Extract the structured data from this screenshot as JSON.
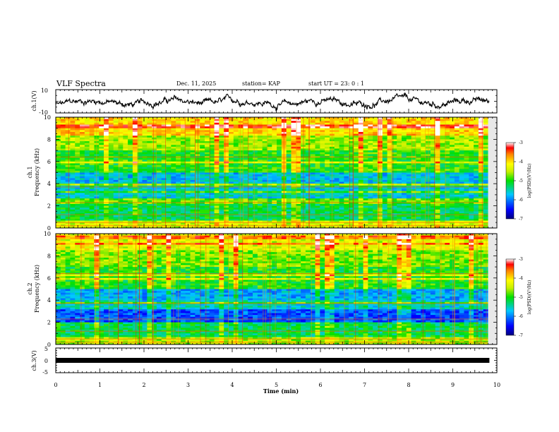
{
  "header": {
    "title": "VLF Spectra",
    "date": "Dec. 11, 2025",
    "station": "station= KAP",
    "start": "start  UT  =   23: 0   : 1"
  },
  "chart_data": [
    {
      "type": "line",
      "ylabel": "ch.1(V)",
      "ylim": [
        -10,
        10
      ],
      "yticks": [
        -10,
        10
      ],
      "xlim": [
        0,
        10
      ],
      "series": [
        {
          "name": "ch.1 waveform",
          "mean": -1,
          "amplitude": 5
        }
      ]
    },
    {
      "type": "heatmap",
      "ylabel_channel": "ch.1",
      "ylabel": "Frequency  (kHz)",
      "ylim": [
        0,
        10
      ],
      "yticks": [
        "0",
        "2",
        "4",
        "6",
        "8",
        "10"
      ],
      "xlim": [
        0,
        9.8
      ],
      "bands_khz": [
        {
          "from": 0,
          "to": 0.6,
          "level": -4.4
        },
        {
          "from": 0.6,
          "to": 2.2,
          "level": -5.2
        },
        {
          "from": 2.2,
          "to": 2.6,
          "level": -4.8
        },
        {
          "from": 2.6,
          "to": 3.6,
          "level": -5.6
        },
        {
          "from": 3.6,
          "to": 4.0,
          "level": -5.3
        },
        {
          "from": 4.0,
          "to": 5.0,
          "level": -5.7
        },
        {
          "from": 5.0,
          "to": 7.0,
          "level": -5.0
        },
        {
          "from": 7.0,
          "to": 8.5,
          "level": -4.6
        },
        {
          "from": 8.5,
          "to": 10,
          "level": -4.0
        }
      ],
      "colorbar": {
        "label": "log(PSD)(V²/Hz)",
        "range": [
          -7,
          -3
        ],
        "ticks": [
          "-3",
          "-4",
          "-5",
          "-6",
          "-7"
        ]
      }
    },
    {
      "type": "heatmap",
      "ylabel_channel": "ch.2",
      "ylabel": "Frequency  (kHz)",
      "ylim": [
        0,
        10
      ],
      "yticks": [
        "0",
        "2",
        "4",
        "6",
        "8",
        "10"
      ],
      "xlim": [
        0,
        9.8
      ],
      "bands_khz": [
        {
          "from": 0,
          "to": 0.6,
          "level": -4.6
        },
        {
          "from": 0.6,
          "to": 2.0,
          "level": -5.2
        },
        {
          "from": 2.0,
          "to": 3.2,
          "level": -6.2
        },
        {
          "from": 3.2,
          "to": 4.0,
          "level": -5.6
        },
        {
          "from": 4.0,
          "to": 5.0,
          "level": -5.8
        },
        {
          "from": 5.0,
          "to": 7.0,
          "level": -5.0
        },
        {
          "from": 7.0,
          "to": 8.5,
          "level": -4.7
        },
        {
          "from": 8.5,
          "to": 10,
          "level": -4.3
        }
      ],
      "colorbar": {
        "label": "log(PSD)(V²/Hz)",
        "range": [
          -7,
          -3
        ],
        "ticks": [
          "-3",
          "-4",
          "-5",
          "-6",
          "-7"
        ]
      }
    },
    {
      "type": "line",
      "ylabel": "ch.3(V)",
      "ylim": [
        -5,
        5
      ],
      "yticks": [
        "-5",
        "0",
        "5"
      ],
      "xlim": [
        0,
        10
      ],
      "series": [
        {
          "name": "ch.3 signal",
          "value": 0
        }
      ]
    }
  ],
  "xaxis": {
    "label": "Time  (min)",
    "ticks": [
      "0",
      "1",
      "2",
      "3",
      "4",
      "5",
      "6",
      "7",
      "8",
      "9",
      "10"
    ],
    "range": [
      0,
      10
    ]
  }
}
